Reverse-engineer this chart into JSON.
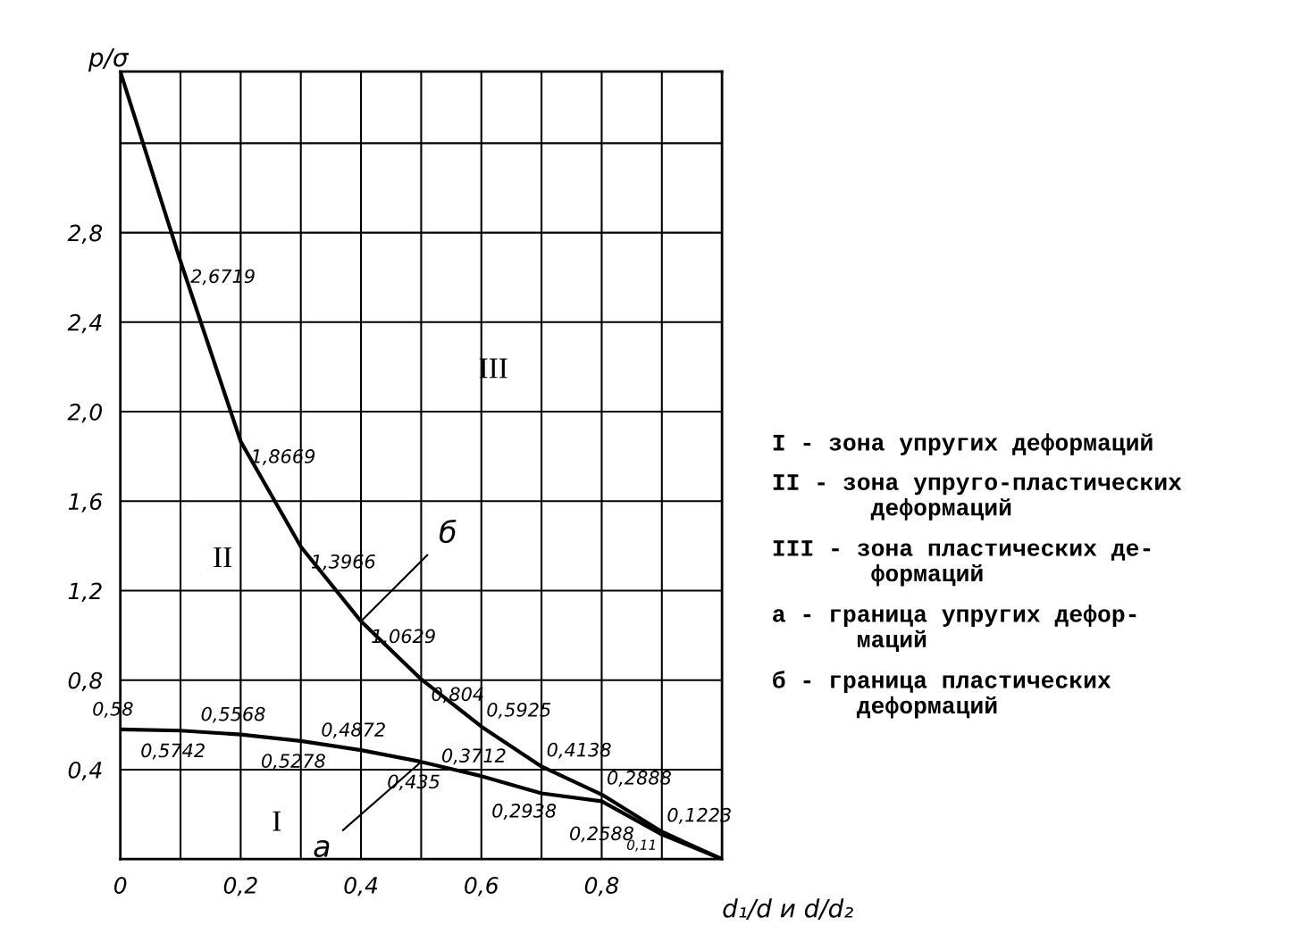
{
  "chart_data": {
    "type": "line",
    "x": [
      0,
      0.1,
      0.2,
      0.3,
      0.4,
      0.5,
      0.6,
      0.7,
      0.8,
      0.9,
      1.0
    ],
    "series": [
      {
        "color": "#000000",
        "values": [
          3.52,
          2.6719,
          1.8669,
          1.3966,
          1.0629,
          0.804,
          0.5925,
          0.4138,
          0.2888,
          0.1223,
          0
        ],
        "value_labels": [
          null,
          "2,6719",
          "1,8669",
          "1,3966",
          "1,0629",
          "0,804",
          "0,5925",
          "0,4138",
          "0,2888",
          "0,1223",
          null
        ]
      },
      {
        "color": "#000000",
        "values": [
          0.58,
          0.5742,
          0.5568,
          0.5278,
          0.4872,
          0.435,
          0.3712,
          0.2938,
          0.2588,
          0.11,
          0
        ],
        "value_labels": [
          "0,58",
          "0,5742",
          "0,5568",
          "0,5278",
          "0,4872",
          "0,435",
          "0,3712",
          "0,2938",
          "0,2588",
          "0,11",
          null
        ]
      }
    ],
    "xlabel": "d₁/d и d/d₂",
    "ylabel": "p/σ",
    "xlim": [
      0,
      1.0
    ],
    "ylim": [
      0,
      3.52
    ],
    "xticks": [
      {
        "value": 0,
        "label": "0"
      },
      {
        "value": 0.1,
        "label": null
      },
      {
        "value": 0.2,
        "label": "0,2"
      },
      {
        "value": 0.3,
        "label": null
      },
      {
        "value": 0.4,
        "label": "0,4"
      },
      {
        "value": 0.5,
        "label": null
      },
      {
        "value": 0.6,
        "label": "0,6"
      },
      {
        "value": 0.7,
        "label": null
      },
      {
        "value": 0.8,
        "label": "0,8"
      },
      {
        "value": 0.9,
        "label": null
      }
    ],
    "yticks": [
      {
        "value": 0.4,
        "label": "0,4"
      },
      {
        "value": 0.8,
        "label": "0,8"
      },
      {
        "value": 1.2,
        "label": "1,2"
      },
      {
        "value": 1.6,
        "label": "1,6"
      },
      {
        "value": 2.0,
        "label": "2,0"
      },
      {
        "value": 2.4,
        "label": "2,4"
      },
      {
        "value": 2.8,
        "label": "2,8"
      },
      {
        "value": 3.2,
        "label": null
      }
    ],
    "grid": true,
    "marker": "none",
    "line_style": "solid",
    "legend": false,
    "annotations": [
      "I",
      "II",
      "III",
      {
        "text": "а",
        "x": 0.5,
        "y": 0.435
      },
      {
        "text": "б",
        "x": 0.4,
        "y": 1.0629
      },
      "I - зона упругих деформаций",
      "II - зона упруго-пластических\n       деформаций",
      "III - зона пластических де-\n       формаций",
      "а - граница упругих дефор-\n      маций",
      "б - граница пластических\n      деформаций"
    ]
  }
}
